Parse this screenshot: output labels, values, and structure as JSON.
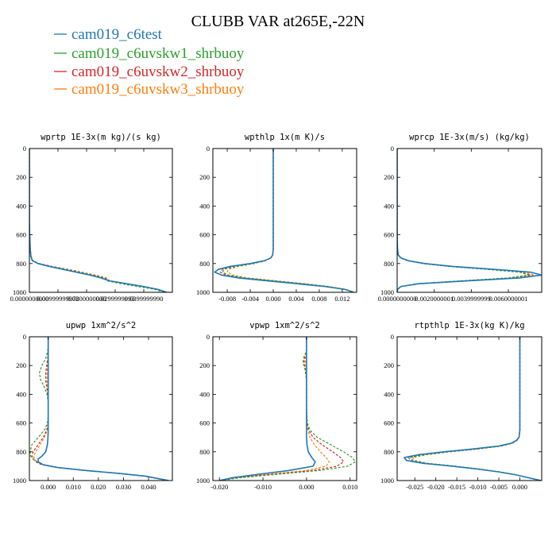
{
  "figure": {
    "title": "CLUBB VAR at265E,-22N"
  },
  "legend": [
    {
      "name": "cam019_c6test",
      "color": "#1f77b4",
      "dash": "solid"
    },
    {
      "name": "cam019_c6uvskw1_shrbuoy",
      "color": "#2ca02c",
      "dash": "dashed"
    },
    {
      "name": "cam019_c6uvskw2_shrbuoy",
      "color": "#d62728",
      "dash": "dashed"
    },
    {
      "name": "cam019_c6uvskw3_shrbuoy",
      "color": "#ff7f0e",
      "dash": "dashed"
    }
  ],
  "chart_data": [
    {
      "type": "line",
      "title": "wprtp  1E-3x(m kg)/(s kg)",
      "xlim": [
        0,
        0.05
      ],
      "ylim": [
        1000,
        0
      ],
      "xticks": [
        0,
        0.01,
        0.02,
        0.03,
        0.04
      ],
      "xtick_labels": [
        "0.0000000000",
        "0.00999999978",
        "0.0200000000",
        "0.0299999993",
        "0.0399999990"
      ],
      "yticks": [
        0,
        200,
        400,
        600,
        800,
        1000
      ],
      "y": [
        0,
        100,
        200,
        300,
        400,
        500,
        600,
        700,
        750,
        780,
        800,
        820,
        850,
        880,
        900,
        920,
        940,
        960,
        980,
        1000
      ],
      "series": [
        {
          "values": [
            0,
            0,
            0,
            0,
            0,
            0,
            0.0001,
            0.0003,
            0.0005,
            0.001,
            0.003,
            0.007,
            0.014,
            0.021,
            0.025,
            0.028,
            0.034,
            0.04,
            0.045,
            0.048
          ]
        },
        {
          "values": [
            0,
            0,
            0,
            0,
            0,
            0,
            0.0001,
            0.0003,
            0.0006,
            0.0012,
            0.0032,
            0.0075,
            0.015,
            0.022,
            0.026,
            0.027,
            0.032,
            0.038,
            0.044,
            0.047
          ]
        },
        {
          "values": [
            0,
            0,
            0,
            0,
            0,
            0,
            0.0001,
            0.0003,
            0.0006,
            0.0012,
            0.0033,
            0.0078,
            0.0155,
            0.0225,
            0.0265,
            0.0275,
            0.0325,
            0.0385,
            0.0445,
            0.0475
          ]
        },
        {
          "values": [
            0,
            0,
            0,
            0,
            0,
            0,
            0.0001,
            0.0003,
            0.0006,
            0.0012,
            0.0034,
            0.008,
            0.016,
            0.023,
            0.027,
            0.028,
            0.033,
            0.039,
            0.045,
            0.048
          ]
        }
      ]
    },
    {
      "type": "line",
      "title": "wpthlp  1x(m K)/s",
      "xlim": [
        -0.0105,
        0.0145
      ],
      "ylim": [
        1000,
        0
      ],
      "xticks": [
        -0.008,
        -0.004,
        0,
        0.004,
        0.008,
        0.012
      ],
      "xtick_labels": [
        "-0.008",
        "-0.004",
        "0.000",
        "0.004",
        "0.008",
        "0.012"
      ],
      "yticks": [
        0,
        200,
        400,
        600,
        800,
        1000
      ],
      "y": [
        0,
        100,
        200,
        300,
        400,
        500,
        600,
        700,
        740,
        760,
        780,
        800,
        820,
        840,
        860,
        880,
        900,
        920,
        940,
        960,
        980,
        1000
      ],
      "series": [
        {
          "values": [
            0,
            0,
            0,
            0,
            0,
            0,
            0,
            0,
            -0.0001,
            -0.0004,
            -0.0015,
            -0.004,
            -0.0075,
            -0.0095,
            -0.0102,
            -0.009,
            -0.006,
            -0.001,
            0.004,
            0.009,
            0.0125,
            0.014
          ]
        },
        {
          "values": [
            0,
            0,
            0,
            0,
            0,
            0,
            0,
            0,
            -0.0001,
            -0.0004,
            -0.0014,
            -0.0035,
            -0.0065,
            -0.0085,
            -0.0088,
            -0.0078,
            -0.005,
            0,
            0.005,
            0.0095,
            0.0125,
            0.014
          ]
        },
        {
          "values": [
            0,
            0,
            0,
            0,
            0,
            0,
            0,
            0,
            -0.0001,
            -0.0004,
            -0.0014,
            -0.0037,
            -0.0068,
            -0.0088,
            -0.0092,
            -0.0082,
            -0.0053,
            -0.0003,
            0.0048,
            0.0093,
            0.0125,
            0.014
          ]
        },
        {
          "values": [
            0,
            0,
            0,
            0,
            0,
            0,
            0,
            0,
            -0.0001,
            -0.0004,
            -0.0013,
            -0.0033,
            -0.006,
            -0.0078,
            -0.008,
            -0.007,
            -0.0045,
            0.0005,
            0.0055,
            0.0098,
            0.0127,
            0.014
          ]
        }
      ]
    },
    {
      "type": "line",
      "title": "wprcp  1E-3x(m/s) (kg/kg)",
      "xlim": [
        0,
        0.0078
      ],
      "ylim": [
        1000,
        0
      ],
      "xticks": [
        0,
        0.002,
        0.004,
        0.006
      ],
      "xtick_labels": [
        "0.0000000000",
        "0.0020000001",
        "0.0039999999",
        "0.0060000001"
      ],
      "yticks": [
        0,
        200,
        400,
        600,
        800,
        1000
      ],
      "y": [
        0,
        100,
        200,
        300,
        400,
        500,
        600,
        700,
        740,
        760,
        780,
        800,
        820,
        840,
        860,
        880,
        900,
        920,
        940,
        960,
        980,
        1000
      ],
      "series": [
        {
          "values": [
            0,
            0,
            0,
            0,
            0,
            0,
            0,
            2e-05,
            6e-05,
            0.0002,
            0.0006,
            0.0015,
            0.003,
            0.0052,
            0.0072,
            0.0078,
            0.0066,
            0.0038,
            0.0012,
            0.0002,
            2e-05,
            0
          ]
        },
        {
          "values": [
            0,
            0,
            0,
            0,
            0,
            0,
            0,
            2e-05,
            5e-05,
            0.00018,
            0.00055,
            0.0014,
            0.0028,
            0.0048,
            0.0066,
            0.0071,
            0.006,
            0.0035,
            0.0011,
            0.0002,
            2e-05,
            0
          ]
        },
        {
          "values": [
            0,
            0,
            0,
            0,
            0,
            0,
            0,
            2e-05,
            5e-05,
            0.00018,
            0.00055,
            0.0014,
            0.0028,
            0.0049,
            0.0067,
            0.0072,
            0.0061,
            0.0036,
            0.0011,
            0.0002,
            2e-05,
            0
          ]
        },
        {
          "values": [
            0,
            0,
            0,
            0,
            0,
            0,
            0,
            2e-05,
            5e-05,
            0.00018,
            0.00055,
            0.0014,
            0.0029,
            0.005,
            0.0069,
            0.0074,
            0.0063,
            0.0037,
            0.0011,
            0.0002,
            2e-05,
            0
          ]
        }
      ]
    },
    {
      "type": "line",
      "title": "upwp   1xm^2/s^2",
      "xlim": [
        -0.0075,
        0.0495
      ],
      "ylim": [
        1000,
        0
      ],
      "xticks": [
        0,
        0.01,
        0.02,
        0.03,
        0.04
      ],
      "xtick_labels": [
        "0.000",
        "0.010",
        "0.020",
        "0.030",
        "0.040"
      ],
      "yticks": [
        0,
        200,
        400,
        600,
        800,
        1000
      ],
      "y": [
        0,
        50,
        100,
        150,
        200,
        250,
        300,
        350,
        400,
        450,
        500,
        550,
        600,
        650,
        700,
        750,
        800,
        830,
        850,
        870,
        890,
        910,
        930,
        950,
        970,
        1000
      ],
      "series": [
        {
          "values": [
            0,
            0,
            0,
            0,
            0,
            0,
            0,
            0,
            0,
            0,
            0,
            0,
            0,
            0,
            -0.0001,
            -0.0003,
            -0.001,
            -0.0025,
            -0.004,
            -0.004,
            -0.002,
            0.004,
            0.015,
            0.028,
            0.039,
            0.048
          ]
        },
        {
          "values": [
            0,
            0,
            -0.0002,
            -0.001,
            -0.0025,
            -0.0035,
            -0.003,
            -0.0015,
            -0.0005,
            0,
            0,
            0,
            -0.0003,
            -0.0015,
            -0.004,
            -0.0065,
            -0.0072,
            -0.007,
            -0.006,
            -0.0045,
            -0.002,
            0.004,
            0.015,
            0.028,
            0.039,
            0.048
          ]
        },
        {
          "values": [
            0,
            0,
            0,
            -0.0002,
            -0.0006,
            -0.001,
            -0.001,
            -0.0006,
            -0.0002,
            0,
            0,
            0,
            0,
            -0.0006,
            -0.002,
            -0.004,
            -0.006,
            -0.0065,
            -0.006,
            -0.005,
            -0.0025,
            0.0035,
            0.0145,
            0.0275,
            0.0385,
            0.0475
          ]
        },
        {
          "values": [
            0,
            0,
            0,
            -0.0001,
            -0.0003,
            -0.0005,
            -0.0005,
            -0.0003,
            -0.0001,
            0,
            0,
            0,
            0,
            -0.0004,
            -0.0015,
            -0.0032,
            -0.005,
            -0.0058,
            -0.0055,
            -0.0045,
            -0.002,
            0.004,
            0.015,
            0.028,
            0.039,
            0.048
          ]
        }
      ]
    },
    {
      "type": "line",
      "title": "vpwp   1xm^2/s^2",
      "xlim": [
        -0.0215,
        0.0115
      ],
      "ylim": [
        1000,
        0
      ],
      "xticks": [
        -0.02,
        -0.01,
        0,
        0.01
      ],
      "xtick_labels": [
        "-0.020",
        "-0.010",
        "0.000",
        "0.010"
      ],
      "yticks": [
        0,
        200,
        400,
        600,
        800,
        1000
      ],
      "y": [
        0,
        100,
        140,
        180,
        220,
        300,
        400,
        500,
        600,
        650,
        700,
        750,
        800,
        840,
        870,
        900,
        930,
        960,
        980,
        1000
      ],
      "series": [
        {
          "values": [
            0,
            0,
            0,
            0,
            0,
            0,
            0,
            0,
            0,
            0,
            0,
            0.0001,
            0.0004,
            0.0012,
            0.002,
            0.0015,
            -0.004,
            -0.012,
            -0.017,
            -0.02
          ]
        },
        {
          "values": [
            0,
            0,
            -0.0006,
            -0.0008,
            -0.0004,
            0,
            0,
            0,
            0.0002,
            0.0008,
            0.0025,
            0.0055,
            0.0085,
            0.0105,
            0.0112,
            0.0095,
            0.003,
            -0.008,
            -0.015,
            -0.02
          ]
        },
        {
          "values": [
            0,
            0,
            -0.0004,
            -0.0006,
            -0.0003,
            0,
            0,
            0,
            0.0001,
            0.0005,
            0.0015,
            0.0035,
            0.006,
            0.0078,
            0.0085,
            0.007,
            0.0015,
            -0.009,
            -0.016,
            -0.02
          ]
        },
        {
          "values": [
            0,
            0,
            -0.0002,
            -0.0003,
            -0.0001,
            0,
            0,
            0,
            0.0001,
            0.0003,
            0.0008,
            0.0018,
            0.0032,
            0.0045,
            0.0052,
            0.0045,
            0,
            -0.01,
            -0.016,
            -0.02
          ]
        }
      ]
    },
    {
      "type": "line",
      "title": "rtpthlp  1E-3x(kg K)/kg",
      "xlim": [
        -0.0292,
        0.0052
      ],
      "ylim": [
        1000,
        0
      ],
      "xticks": [
        -0.025,
        -0.02,
        -0.015,
        -0.01,
        -0.005,
        0
      ],
      "xtick_labels": [
        "-0.025",
        "-0.020",
        "-0.015",
        "-0.010",
        "-0.005",
        "0.000"
      ],
      "yticks": [
        0,
        200,
        400,
        600,
        800,
        1000
      ],
      "y": [
        0,
        100,
        200,
        300,
        400,
        500,
        600,
        650,
        700,
        720,
        740,
        760,
        780,
        800,
        820,
        840,
        860,
        880,
        900,
        920,
        940,
        960,
        980,
        1000
      ],
      "series": [
        {
          "values": [
            0,
            0,
            0,
            0,
            0,
            0,
            0,
            0,
            -0.0002,
            -0.0008,
            -0.002,
            -0.005,
            -0.011,
            -0.018,
            -0.024,
            -0.0275,
            -0.027,
            -0.023,
            -0.016,
            -0.01,
            -0.005,
            -0.001,
            0.002,
            0.005
          ]
        },
        {
          "values": [
            0,
            0,
            0,
            0,
            0,
            0,
            0,
            0,
            -0.0002,
            -0.0007,
            -0.0018,
            -0.0045,
            -0.01,
            -0.017,
            -0.0225,
            -0.026,
            -0.0255,
            -0.0222,
            -0.0155,
            -0.0098,
            -0.0048,
            -0.001,
            0.002,
            0.005
          ]
        },
        {
          "values": [
            0,
            0,
            0,
            0,
            0,
            0,
            0,
            0,
            -0.0002,
            -0.0007,
            -0.0019,
            -0.0047,
            -0.0105,
            -0.0175,
            -0.023,
            -0.0265,
            -0.026,
            -0.0225,
            -0.0158,
            -0.0099,
            -0.0049,
            -0.001,
            0.002,
            0.005
          ]
        },
        {
          "values": [
            0,
            0,
            0,
            0,
            0,
            0,
            0,
            0,
            -0.0002,
            -0.0006,
            -0.0017,
            -0.0043,
            -0.0095,
            -0.0165,
            -0.022,
            -0.0255,
            -0.025,
            -0.022,
            -0.0153,
            -0.0097,
            -0.0047,
            -0.001,
            0.002,
            0.005
          ]
        }
      ]
    }
  ]
}
